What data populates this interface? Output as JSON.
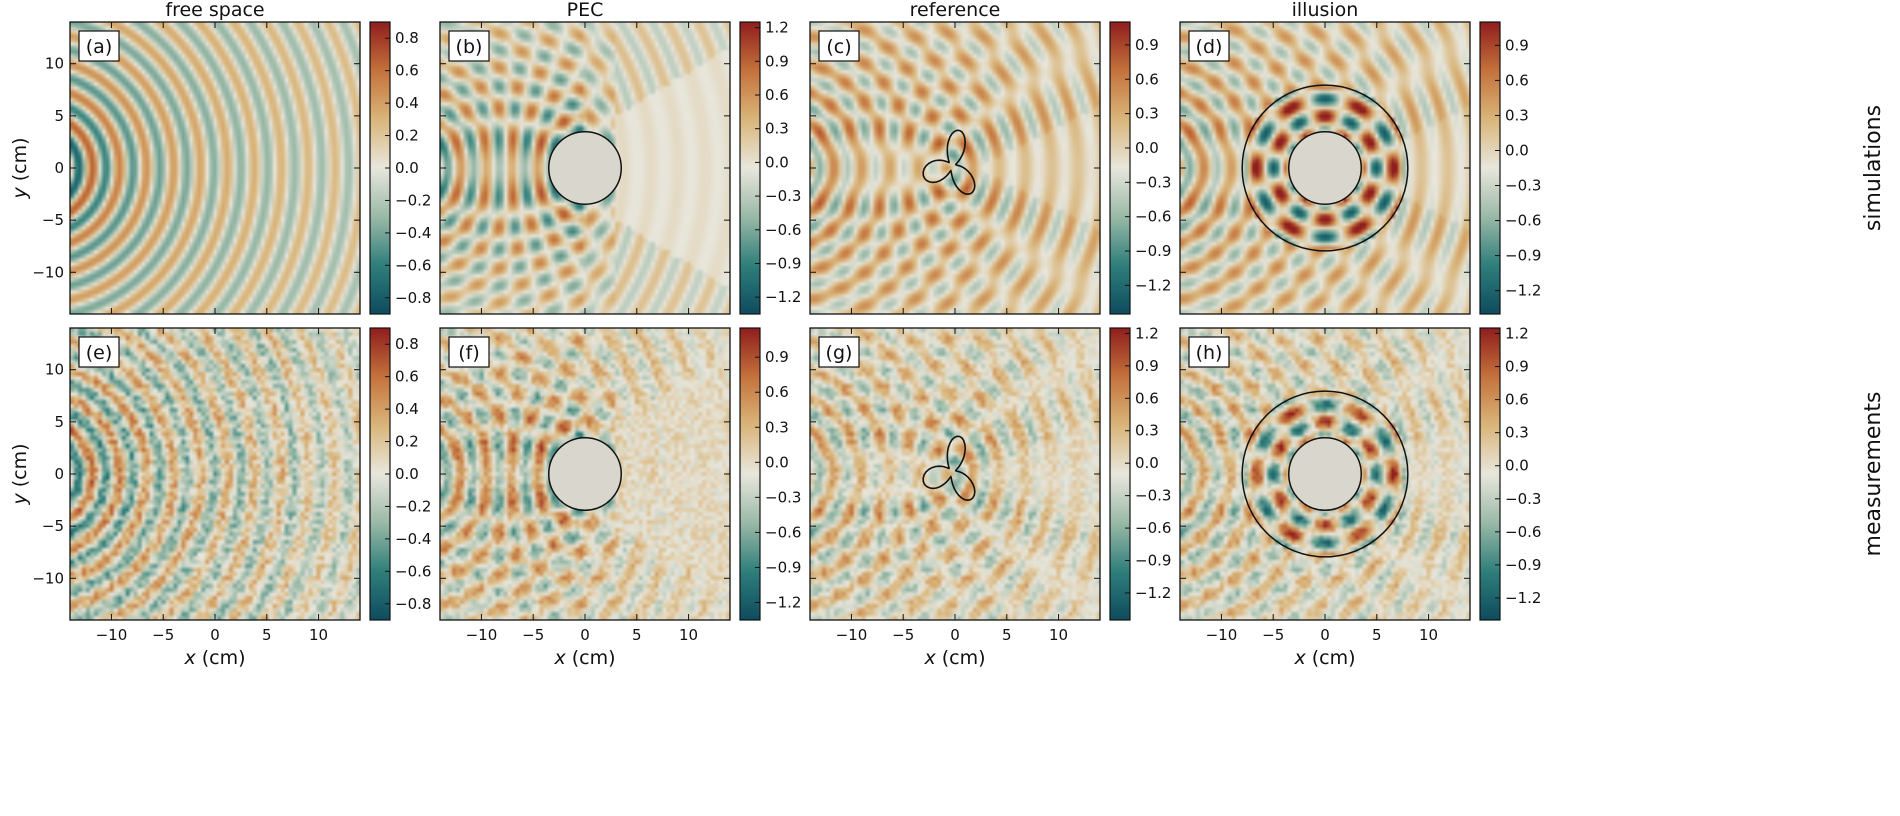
{
  "chart_data": {
    "type": "heatmap",
    "columns": [
      "free space",
      "PEC",
      "reference",
      "illusion"
    ],
    "rows": [
      "simulations",
      "measurements"
    ],
    "xlabel_var": "x",
    "xlabel_unit": " (cm)",
    "ylabel_var": "y",
    "ylabel_unit": " (cm)",
    "xlim": [
      -14,
      14
    ],
    "ylim": [
      -14,
      14
    ],
    "x_ticks": [
      -10,
      -5,
      0,
      5,
      10
    ],
    "y_ticks": [
      -10,
      -5,
      0,
      5,
      10
    ],
    "x_tick_labels": [
      "−10",
      "−5",
      "0",
      "5",
      "10"
    ],
    "y_tick_labels": [
      "−10",
      "−5",
      "0",
      "5",
      "10"
    ],
    "colormap": [
      "#0e4b5e",
      "#2f7f7b",
      "#9ab9a7",
      "#e8e6dc",
      "#d9b57a",
      "#c4723c",
      "#8f1d1d"
    ],
    "scatterer_fill": "#d8d6cd",
    "panels": [
      {
        "tag": "(a)",
        "row": 0,
        "col": 0,
        "kind": "free",
        "source": "sim",
        "cbar_range": [
          -0.9,
          0.9
        ],
        "cbar_ticks": [
          -0.8,
          -0.6,
          -0.4,
          -0.2,
          0.0,
          0.2,
          0.4,
          0.6,
          0.8
        ],
        "cbar_tick_labels": [
          "−0.8",
          "−0.6",
          "−0.4",
          "−0.2",
          "0.0",
          "0.2",
          "0.4",
          "0.6",
          "0.8"
        ]
      },
      {
        "tag": "(b)",
        "row": 0,
        "col": 1,
        "kind": "pec",
        "source": "sim",
        "cbar_range": [
          -1.35,
          1.25
        ],
        "cbar_ticks": [
          -1.2,
          -0.9,
          -0.6,
          -0.3,
          0.0,
          0.3,
          0.6,
          0.9,
          1.2
        ],
        "cbar_tick_labels": [
          "−1.2",
          "−0.9",
          "−0.6",
          "−0.3",
          "0.0",
          "0.3",
          "0.6",
          "0.9",
          "1.2"
        ],
        "inner_radius_cm": 3.5
      },
      {
        "tag": "(c)",
        "row": 0,
        "col": 2,
        "kind": "ref",
        "source": "sim",
        "cbar_range": [
          -1.45,
          1.1
        ],
        "cbar_ticks": [
          -1.2,
          -0.9,
          -0.6,
          -0.3,
          0.0,
          0.3,
          0.6,
          0.9
        ],
        "cbar_tick_labels": [
          "−1.2",
          "−0.9",
          "−0.6",
          "−0.3",
          "0.0",
          "0.3",
          "0.6",
          "0.9"
        ]
      },
      {
        "tag": "(d)",
        "row": 0,
        "col": 3,
        "kind": "illusion",
        "source": "sim",
        "cbar_range": [
          -1.4,
          1.1
        ],
        "cbar_ticks": [
          -1.2,
          -0.9,
          -0.6,
          -0.3,
          0.0,
          0.3,
          0.6,
          0.9
        ],
        "cbar_tick_labels": [
          "−1.2",
          "−0.9",
          "−0.6",
          "−0.3",
          "0.0",
          "0.3",
          "0.6",
          "0.9"
        ],
        "inner_radius_cm": 3.5,
        "outer_radius_cm": 8.0
      },
      {
        "tag": "(e)",
        "row": 1,
        "col": 0,
        "kind": "free",
        "source": "meas",
        "cbar_range": [
          -0.9,
          0.9
        ],
        "cbar_ticks": [
          -0.8,
          -0.6,
          -0.4,
          -0.2,
          0.0,
          0.2,
          0.4,
          0.6,
          0.8
        ],
        "cbar_tick_labels": [
          "−0.8",
          "−0.6",
          "−0.4",
          "−0.2",
          "0.0",
          "0.2",
          "0.4",
          "0.6",
          "0.8"
        ]
      },
      {
        "tag": "(f)",
        "row": 1,
        "col": 1,
        "kind": "pec",
        "source": "meas",
        "cbar_range": [
          -1.35,
          1.15
        ],
        "cbar_ticks": [
          -1.2,
          -0.9,
          -0.6,
          -0.3,
          0.0,
          0.3,
          0.6,
          0.9
        ],
        "cbar_tick_labels": [
          "−1.2",
          "−0.9",
          "−0.6",
          "−0.3",
          "0.0",
          "0.3",
          "0.6",
          "0.9"
        ],
        "inner_radius_cm": 3.5
      },
      {
        "tag": "(g)",
        "row": 1,
        "col": 2,
        "kind": "ref",
        "source": "meas",
        "cbar_range": [
          -1.45,
          1.25
        ],
        "cbar_ticks": [
          -1.2,
          -0.9,
          -0.6,
          -0.3,
          0.0,
          0.3,
          0.6,
          0.9,
          1.2
        ],
        "cbar_tick_labels": [
          "−1.2",
          "−0.9",
          "−0.6",
          "−0.3",
          "0.0",
          "0.3",
          "0.6",
          "0.9",
          "1.2"
        ]
      },
      {
        "tag": "(h)",
        "row": 1,
        "col": 3,
        "kind": "illusion",
        "source": "meas",
        "cbar_range": [
          -1.4,
          1.25
        ],
        "cbar_ticks": [
          -1.2,
          -0.9,
          -0.6,
          -0.3,
          0.0,
          0.3,
          0.6,
          0.9,
          1.2
        ],
        "cbar_tick_labels": [
          "−1.2",
          "−0.9",
          "−0.6",
          "−0.3",
          "0.0",
          "0.3",
          "0.6",
          "0.9",
          "1.2"
        ],
        "inner_radius_cm": 3.5,
        "outer_radius_cm": 8.0
      }
    ]
  }
}
